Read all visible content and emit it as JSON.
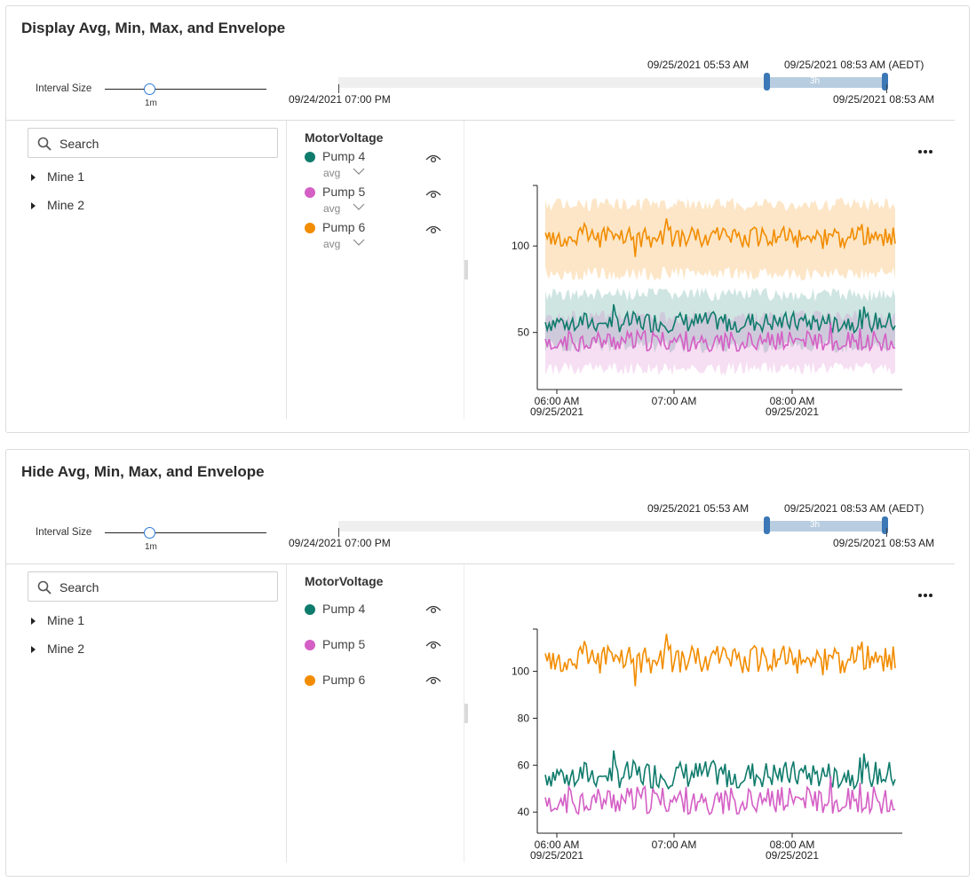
{
  "panels": [
    {
      "title": "Display Avg, Min, Max, and Envelope",
      "interval_label": "Interval Size",
      "interval_value": "1m",
      "range_start_label": "09/25/2021 05:53 AM",
      "range_end_label": "09/25/2021 08:53 AM (AEDT)",
      "range_duration": "3h",
      "timeline_start": "09/24/2021 07:00 PM",
      "timeline_end": "09/25/2021 08:53 AM",
      "search_placeholder": "Search",
      "tree": [
        "Mine 1",
        "Mine 2"
      ],
      "legend_title": "MotorVoltage",
      "show_envelope": true,
      "series": [
        {
          "name": "Pump 4",
          "color": "#0f7b6c",
          "agg": "avg"
        },
        {
          "name": "Pump 5",
          "color": "#d45fc5",
          "agg": "avg"
        },
        {
          "name": "Pump 6",
          "color": "#f28c00",
          "agg": "avg"
        }
      ]
    },
    {
      "title": "Hide Avg, Min, Max, and Envelope",
      "interval_label": "Interval Size",
      "interval_value": "1m",
      "range_start_label": "09/25/2021 05:53 AM",
      "range_end_label": "09/25/2021 08:53 AM (AEDT)",
      "range_duration": "3h",
      "timeline_start": "09/24/2021 07:00 PM",
      "timeline_end": "09/25/2021 08:53 AM",
      "search_placeholder": "Search",
      "tree": [
        "Mine 1",
        "Mine 2"
      ],
      "legend_title": "MotorVoltage",
      "show_envelope": false,
      "series": [
        {
          "name": "Pump 4",
          "color": "#0f7b6c"
        },
        {
          "name": "Pump 5",
          "color": "#d45fc5"
        },
        {
          "name": "Pump 6",
          "color": "#f28c00"
        }
      ]
    }
  ],
  "chart_data": [
    {
      "type": "line",
      "x_ticks": [
        {
          "time": "06:00 AM",
          "date": "09/25/2021"
        },
        {
          "time": "07:00 AM",
          "date": ""
        },
        {
          "time": "08:00 AM",
          "date": "09/25/2021"
        }
      ],
      "x_range": [
        "09/25/2021 05:53 AM",
        "09/25/2021 08:53 AM"
      ],
      "y_ticks": [
        50,
        100
      ],
      "ylim": [
        17,
        135
      ],
      "series": [
        {
          "name": "Pump 4",
          "color": "#0f7b6c",
          "avg": 56,
          "min": 38,
          "max": 76
        },
        {
          "name": "Pump 5",
          "color": "#d45fc5",
          "avg": 45,
          "min": 25,
          "max": 63
        },
        {
          "name": "Pump 6",
          "color": "#f28c00",
          "avg": 105,
          "min": 80,
          "max": 128
        }
      ],
      "envelope": true
    },
    {
      "type": "line",
      "x_ticks": [
        {
          "time": "06:00 AM",
          "date": "09/25/2021"
        },
        {
          "time": "07:00 AM",
          "date": ""
        },
        {
          "time": "08:00 AM",
          "date": "09/25/2021"
        }
      ],
      "x_range": [
        "09/25/2021 05:53 AM",
        "09/25/2021 08:53 AM"
      ],
      "y_ticks": [
        40,
        60,
        80,
        100
      ],
      "ylim": [
        31,
        118
      ],
      "series": [
        {
          "name": "Pump 4",
          "color": "#0f7b6c",
          "avg": 56
        },
        {
          "name": "Pump 5",
          "color": "#d45fc5",
          "avg": 45
        },
        {
          "name": "Pump 6",
          "color": "#f28c00",
          "avg": 105
        }
      ],
      "envelope": false
    }
  ]
}
